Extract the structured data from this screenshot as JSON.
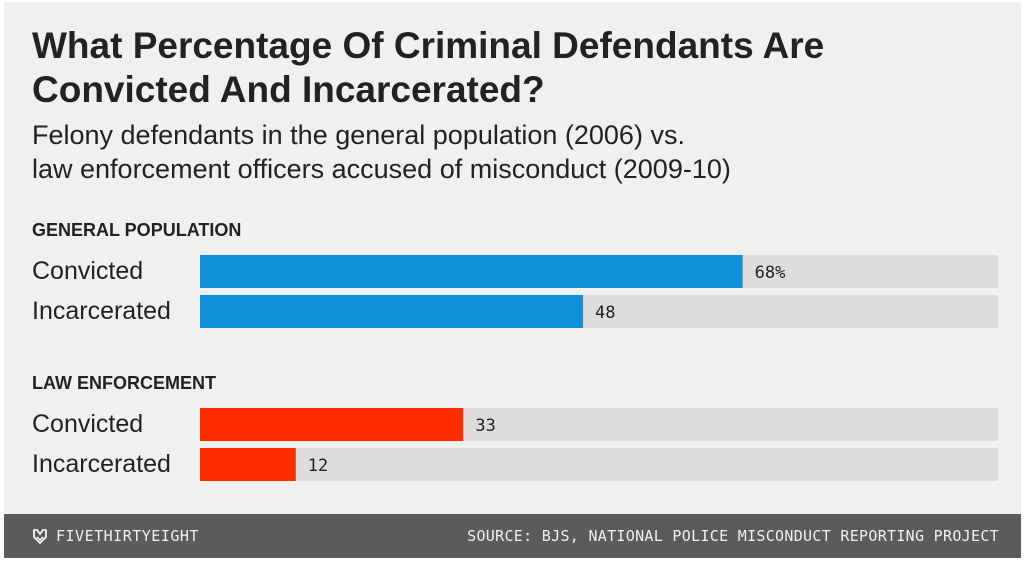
{
  "title": "What Percentage Of Criminal Defendants Are Convicted And Incarcerated?",
  "subtitle_lines": [
    "Felony defendants in the general population (2006) vs.",
    "law enforcement officers accused of misconduct (2009-10)"
  ],
  "colors": {
    "background": "#f0f0f0",
    "track": "#dddddd",
    "general_population": "#0f8fd8",
    "law_enforcement": "#ff2d00",
    "footer": "#5b5b5b",
    "text": "#222222"
  },
  "chart_data": {
    "type": "bar",
    "orientation": "horizontal",
    "xlim": [
      0,
      100
    ],
    "unit": "%",
    "groups": [
      {
        "name": "GENERAL POPULATION",
        "color": "#0f8fd8",
        "bars": [
          {
            "label": "Convicted",
            "value": 68,
            "value_label": "68%"
          },
          {
            "label": "Incarcerated",
            "value": 48,
            "value_label": "48"
          }
        ]
      },
      {
        "name": "LAW ENFORCEMENT",
        "color": "#ff2d00",
        "bars": [
          {
            "label": "Convicted",
            "value": 33,
            "value_label": "33"
          },
          {
            "label": "Incarcerated",
            "value": 12,
            "value_label": "12"
          }
        ]
      }
    ]
  },
  "footer": {
    "brand": "FIVETHIRTYEIGHT",
    "brand_icon": "fivethirtyeight-logo-icon",
    "source": "SOURCE: BJS, NATIONAL POLICE MISCONDUCT REPORTING PROJECT"
  }
}
